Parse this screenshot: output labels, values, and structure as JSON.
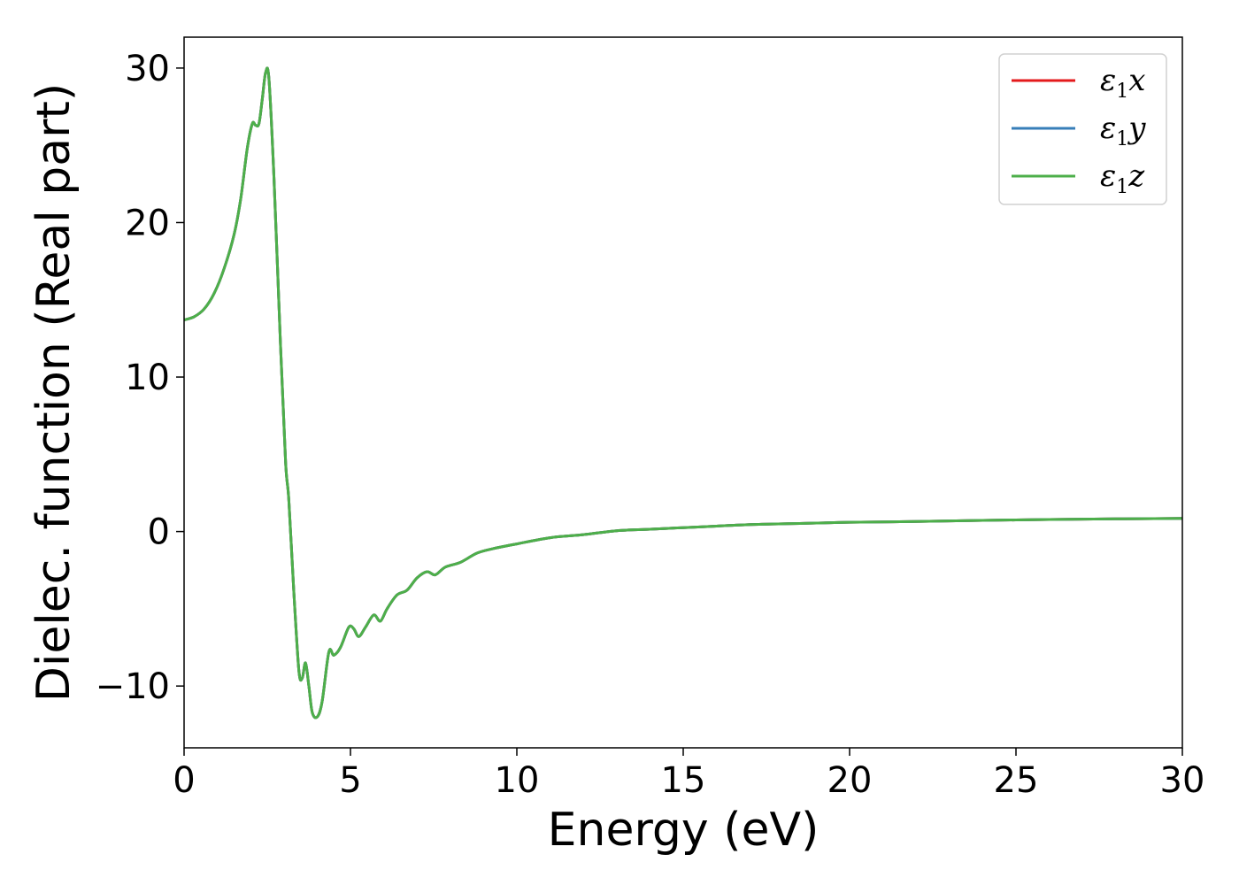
{
  "chart_data": {
    "type": "line",
    "title": "",
    "xlabel": "Energy (eV)",
    "ylabel": "Dielec. function (Real part)",
    "xlim": [
      0,
      30
    ],
    "ylim": [
      -14,
      32
    ],
    "xticks": [
      0,
      5,
      10,
      15,
      20,
      25,
      30
    ],
    "yticks": [
      -10,
      0,
      10,
      20,
      30
    ],
    "xtick_labels": [
      "0",
      "5",
      "10",
      "15",
      "20",
      "25",
      "30"
    ],
    "ytick_labels": [
      "−10",
      "0",
      "10",
      "20",
      "30"
    ],
    "grid": false,
    "legend_position": "top-right",
    "x": [
      0,
      0.3,
      0.6,
      0.9,
      1.2,
      1.5,
      1.7,
      1.9,
      2.05,
      2.15,
      2.25,
      2.35,
      2.45,
      2.55,
      2.7,
      2.9,
      3.05,
      3.15,
      3.3,
      3.45,
      3.55,
      3.65,
      3.75,
      3.85,
      4.0,
      4.15,
      4.35,
      4.5,
      4.7,
      4.95,
      5.1,
      5.25,
      5.45,
      5.7,
      5.9,
      6.1,
      6.4,
      6.7,
      7.0,
      7.3,
      7.55,
      7.85,
      8.3,
      8.8,
      9.3,
      10.0,
      11.0,
      12.0,
      13.0,
      14.0,
      15.0,
      16.0,
      17.0,
      18.0,
      19.0,
      20.0,
      22.0,
      24.0,
      26.0,
      28.0,
      30.0
    ],
    "series": [
      {
        "name": "ε1x",
        "color": "#e41a1c",
        "y": [
          13.7,
          13.9,
          14.4,
          15.4,
          17.0,
          19.2,
          21.5,
          24.8,
          26.4,
          26.3,
          26.4,
          28.0,
          29.7,
          29.3,
          23.0,
          12.0,
          4.5,
          2.0,
          -4.0,
          -9.0,
          -9.5,
          -8.5,
          -10.0,
          -11.7,
          -12.0,
          -11.0,
          -7.8,
          -8.0,
          -7.5,
          -6.2,
          -6.3,
          -6.8,
          -6.2,
          -5.4,
          -5.8,
          -5.0,
          -4.1,
          -3.8,
          -3.0,
          -2.6,
          -2.8,
          -2.3,
          -2.0,
          -1.4,
          -1.1,
          -0.8,
          -0.4,
          -0.2,
          0.05,
          0.15,
          0.25,
          0.35,
          0.45,
          0.5,
          0.55,
          0.6,
          0.65,
          0.72,
          0.78,
          0.82,
          0.85
        ]
      },
      {
        "name": "ε1y",
        "color": "#377eb8",
        "y": [
          13.7,
          13.9,
          14.4,
          15.4,
          17.0,
          19.2,
          21.5,
          24.8,
          26.4,
          26.3,
          26.4,
          28.0,
          29.7,
          29.3,
          23.0,
          12.0,
          4.5,
          2.0,
          -4.0,
          -9.0,
          -9.5,
          -8.5,
          -10.0,
          -11.7,
          -12.0,
          -11.0,
          -7.8,
          -8.0,
          -7.5,
          -6.2,
          -6.3,
          -6.8,
          -6.2,
          -5.4,
          -5.8,
          -5.0,
          -4.1,
          -3.8,
          -3.0,
          -2.6,
          -2.8,
          -2.3,
          -2.0,
          -1.4,
          -1.1,
          -0.8,
          -0.4,
          -0.2,
          0.05,
          0.15,
          0.25,
          0.35,
          0.45,
          0.5,
          0.55,
          0.6,
          0.65,
          0.72,
          0.78,
          0.82,
          0.85
        ]
      },
      {
        "name": "ε1z",
        "color": "#4daf4a",
        "y": [
          13.7,
          13.9,
          14.4,
          15.4,
          17.0,
          19.2,
          21.5,
          24.8,
          26.4,
          26.3,
          26.4,
          28.0,
          29.7,
          29.3,
          23.0,
          12.0,
          4.5,
          2.0,
          -4.0,
          -9.0,
          -9.5,
          -8.5,
          -10.0,
          -11.7,
          -12.0,
          -11.0,
          -7.8,
          -8.0,
          -7.5,
          -6.2,
          -6.3,
          -6.8,
          -6.2,
          -5.4,
          -5.8,
          -5.0,
          -4.1,
          -3.8,
          -3.0,
          -2.6,
          -2.8,
          -2.3,
          -2.0,
          -1.4,
          -1.1,
          -0.8,
          -0.4,
          -0.2,
          0.05,
          0.15,
          0.25,
          0.35,
          0.45,
          0.5,
          0.55,
          0.6,
          0.65,
          0.72,
          0.78,
          0.82,
          0.85
        ]
      }
    ],
    "legend": [
      {
        "symbol": "ε",
        "sub": "1",
        "axis": "x",
        "color": "#e41a1c"
      },
      {
        "symbol": "ε",
        "sub": "1",
        "axis": "y",
        "color": "#377eb8"
      },
      {
        "symbol": "ε",
        "sub": "1",
        "axis": "z",
        "color": "#4daf4a"
      }
    ]
  }
}
